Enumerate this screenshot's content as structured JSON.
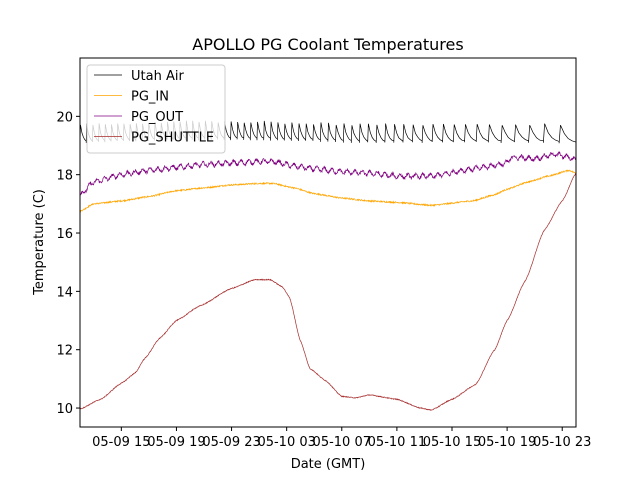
{
  "chart_data": {
    "type": "line",
    "title": "APOLLO PG Coolant Temperatures",
    "xlabel": "Date (GMT)",
    "ylabel": "Temperature (C)",
    "x_units": "hours since 05-09 12:00 GMT",
    "xlim": [
      0,
      36
    ],
    "ylim": [
      9.35,
      22.0
    ],
    "x_ticks": [
      {
        "value": 3,
        "label": "05-09 15"
      },
      {
        "value": 7,
        "label": "05-09 19"
      },
      {
        "value": 11,
        "label": "05-09 23"
      },
      {
        "value": 15,
        "label": "05-10 03"
      },
      {
        "value": 19,
        "label": "05-10 07"
      },
      {
        "value": 23,
        "label": "05-10 11"
      },
      {
        "value": 27,
        "label": "05-10 15"
      },
      {
        "value": 31,
        "label": "05-10 19"
      },
      {
        "value": 35,
        "label": "05-10 23"
      }
    ],
    "y_ticks": [
      {
        "value": 10,
        "label": "10"
      },
      {
        "value": 12,
        "label": "12"
      },
      {
        "value": 14,
        "label": "14"
      },
      {
        "value": 16,
        "label": "16"
      },
      {
        "value": 18,
        "label": "18"
      },
      {
        "value": 20,
        "label": "20"
      }
    ],
    "grid": false,
    "legend": {
      "placement": "top-left"
    },
    "series": [
      {
        "name": "Utah Air",
        "color": "#000000",
        "style": "sawtooth oscillation",
        "oscillation": {
          "low": 19.1,
          "high": 19.72,
          "period_start_h": 0.45,
          "period_end_h": 1.3
        },
        "baseline": {
          "x": [
            0,
            4,
            8,
            12,
            16,
            20,
            24,
            28,
            30,
            32,
            34,
            35.5,
            36
          ],
          "y": [
            19.35,
            19.4,
            19.45,
            19.45,
            19.4,
            19.35,
            19.35,
            19.35,
            19.35,
            19.35,
            19.35,
            19.3,
            19.05
          ]
        }
      },
      {
        "name": "PG_IN",
        "color": "#ffa500",
        "x": [
          0,
          1,
          3,
          5,
          7,
          9,
          11,
          13,
          14,
          15.5,
          17,
          19,
          21,
          23,
          25.5,
          28.5,
          30,
          31,
          32.5,
          34,
          35.5,
          36
        ],
        "y": [
          16.75,
          17.0,
          17.1,
          17.25,
          17.45,
          17.55,
          17.65,
          17.7,
          17.7,
          17.55,
          17.35,
          17.2,
          17.1,
          17.05,
          16.95,
          17.1,
          17.3,
          17.5,
          17.75,
          17.95,
          18.15,
          18.05
        ]
      },
      {
        "name": "PG_OUT",
        "color": "#800080",
        "x": [
          0,
          1,
          3,
          5,
          7,
          9,
          11,
          13,
          14,
          15.5,
          17,
          19,
          21,
          23,
          25.5,
          28.5,
          30.5,
          31,
          31.3,
          33,
          34.5,
          35.5,
          36
        ],
        "y": [
          17.3,
          17.75,
          18.0,
          18.15,
          18.25,
          18.35,
          18.4,
          18.45,
          18.45,
          18.3,
          18.2,
          18.1,
          18.05,
          17.95,
          17.95,
          18.2,
          18.35,
          18.4,
          18.6,
          18.55,
          18.7,
          18.6,
          18.5
        ]
      },
      {
        "name": "PG_SHUTTLE",
        "color": "#a52a2a",
        "x": [
          0,
          1.5,
          3,
          4,
          4.7,
          5.8,
          7,
          8.7,
          11,
          12.7,
          13.8,
          14.7,
          15.2,
          16,
          16.7,
          17.8,
          19,
          20,
          21,
          23,
          24.7,
          25.5,
          27,
          28.7,
          30.1,
          31,
          32.3,
          33.7,
          35,
          36
        ],
        "y": [
          9.97,
          10.3,
          10.85,
          11.2,
          11.7,
          12.4,
          13.0,
          13.5,
          14.1,
          14.4,
          14.4,
          14.15,
          13.8,
          12.3,
          11.35,
          10.95,
          10.4,
          10.35,
          10.45,
          10.3,
          10.0,
          9.93,
          10.3,
          10.8,
          12.0,
          13.0,
          14.35,
          16.1,
          17.1,
          18.05
        ]
      }
    ]
  }
}
